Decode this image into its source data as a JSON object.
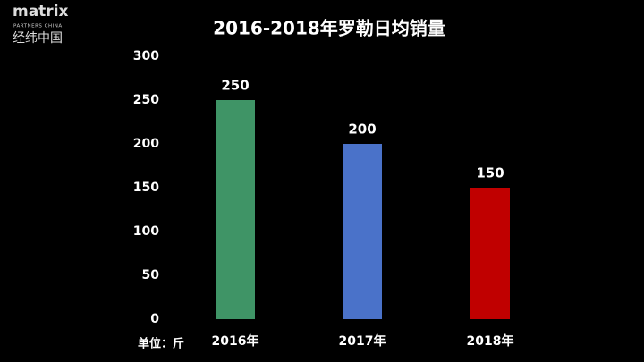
{
  "logo": {
    "name": "matrix",
    "tagline": "PARTNERS CHINA",
    "chinese_name": "经纬中国"
  },
  "chart_data": {
    "type": "bar",
    "title": "2016-2018年罗勒日均销量",
    "categories": [
      "2016年",
      "2017年",
      "2018年"
    ],
    "values": [
      250,
      200,
      150
    ],
    "colors": [
      "#3f9466",
      "#4a72c9",
      "#c00000"
    ],
    "ylim": [
      0,
      300
    ],
    "yticks": [
      0,
      50,
      100,
      150,
      200,
      250,
      300
    ],
    "unit_label": "单位：斤",
    "grid": false
  }
}
